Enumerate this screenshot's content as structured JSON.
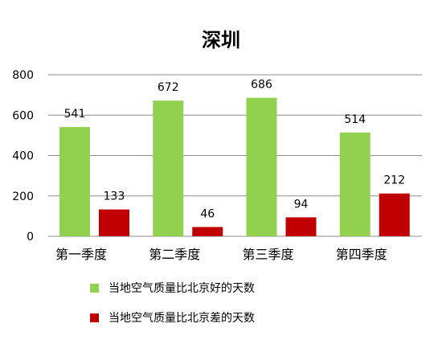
{
  "chart_data": {
    "type": "bar",
    "title": "深圳",
    "categories": [
      "第一季度",
      "第二季度",
      "第三季度",
      "第四季度"
    ],
    "series": [
      {
        "name": "当地空气质量比北京好的天数",
        "color": "#92d050",
        "values": [
          541,
          672,
          686,
          514
        ]
      },
      {
        "name": "当地空气质量比北京差的天数",
        "color": "#c00000",
        "values": [
          133,
          46,
          94,
          212
        ]
      }
    ],
    "ylim": [
      0,
      800
    ],
    "yticks": [
      "0",
      "200",
      "400",
      "600",
      "800"
    ],
    "grid": true,
    "legend_position": "bottom",
    "xlabel": "",
    "ylabel": ""
  }
}
